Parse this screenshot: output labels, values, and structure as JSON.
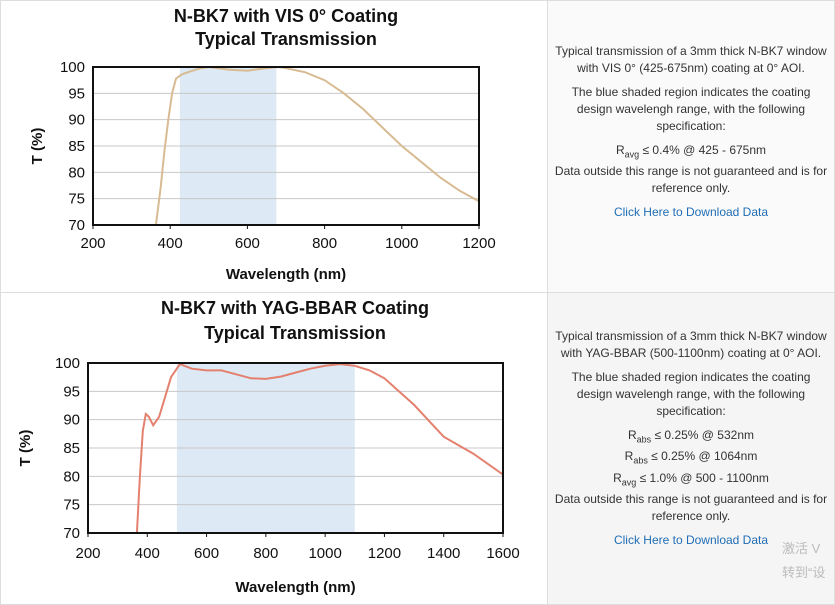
{
  "chart_data": [
    {
      "type": "line",
      "title": "N-BK7 with VIS 0° Coating",
      "subtitle": "Typical Transmission",
      "x_label": "Wavelength (nm)",
      "y_label": "T (%)",
      "x": [
        363,
        375,
        385,
        395,
        405,
        415,
        430,
        450,
        475,
        500,
        550,
        600,
        650,
        680,
        700,
        750,
        800,
        850,
        900,
        950,
        1000,
        1050,
        1100,
        1150,
        1200
      ],
      "values": [
        70,
        77,
        84,
        90,
        95,
        97.8,
        98.6,
        99.1,
        99.7,
        100,
        99.5,
        99.3,
        99.8,
        100,
        99.8,
        99,
        97.5,
        95,
        92,
        88.5,
        85,
        82,
        79,
        76.5,
        74.5
      ],
      "color": "#d8bb92",
      "shaded_range": [
        425,
        675
      ],
      "shade_color": "#dde9f5",
      "xlim": [
        200,
        1200
      ],
      "xticks": [
        200,
        400,
        600,
        800,
        1000,
        1200
      ],
      "ylim": [
        70,
        100
      ],
      "yticks": [
        70,
        75,
        80,
        85,
        90,
        95,
        100
      ],
      "grid": true
    },
    {
      "type": "line",
      "title": "N-BK7 with YAG-BBAR Coating",
      "subtitle": "Typical Transmission",
      "x_label": "Wavelength (nm)",
      "y_label": "T (%)",
      "x": [
        365,
        375,
        385,
        395,
        405,
        420,
        440,
        460,
        480,
        510,
        550,
        600,
        650,
        700,
        750,
        800,
        850,
        900,
        950,
        1000,
        1050,
        1100,
        1150,
        1200,
        1300,
        1400,
        1450,
        1500,
        1600
      ],
      "values": [
        70,
        80,
        88,
        91,
        90.5,
        89,
        90.5,
        94,
        97.5,
        99.8,
        99,
        98.7,
        98.7,
        98,
        97.3,
        97.2,
        97.6,
        98.3,
        99,
        99.5,
        99.8,
        99.5,
        98.7,
        97.3,
        92.6,
        87,
        85.5,
        84,
        80.3
      ],
      "color": "#e4806e",
      "shaded_range": [
        500,
        1100
      ],
      "shade_color": "#dde9f5",
      "xlim": [
        200,
        1600
      ],
      "xticks": [
        200,
        400,
        600,
        800,
        1000,
        1200,
        1400,
        1600
      ],
      "ylim": [
        70,
        100
      ],
      "yticks": [
        70,
        75,
        80,
        85,
        90,
        95,
        100
      ],
      "grid": true
    }
  ],
  "panels": [
    {
      "description": "Typical transmission of a 3mm thick N-BK7 window with VIS 0° (425-675nm) coating at 0° AOI.",
      "shading_note": "The blue shaded region indicates the coating design wavelengh range, with the following specification:",
      "specs": [
        {
          "symbol": "R",
          "sub": "avg",
          "text": "≤ 0.4% @ 425 - 675nm"
        }
      ],
      "disclaimer": "Data outside this range is not guaranteed and is for reference only.",
      "download": "Click Here to Download Data"
    },
    {
      "description": "Typical transmission of a 3mm thick N-BK7 window with YAG-BBAR (500-1100nm) coating at 0° AOI.",
      "shading_note": "The blue shaded region indicates the coating design wavelengh range, with the following specification:",
      "specs": [
        {
          "symbol": "R",
          "sub": "abs",
          "text": "≤ 0.25% @ 532nm"
        },
        {
          "symbol": "R",
          "sub": "abs",
          "text": "≤ 0.25% @ 1064nm"
        },
        {
          "symbol": "R",
          "sub": "avg",
          "text": "≤ 1.0% @ 500 - 1100nm"
        }
      ],
      "disclaimer": "Data outside this range is not guaranteed and is for reference only.",
      "download": "Click Here to Download Data"
    }
  ],
  "watermark": [
    "激活 V",
    "转到“设"
  ]
}
